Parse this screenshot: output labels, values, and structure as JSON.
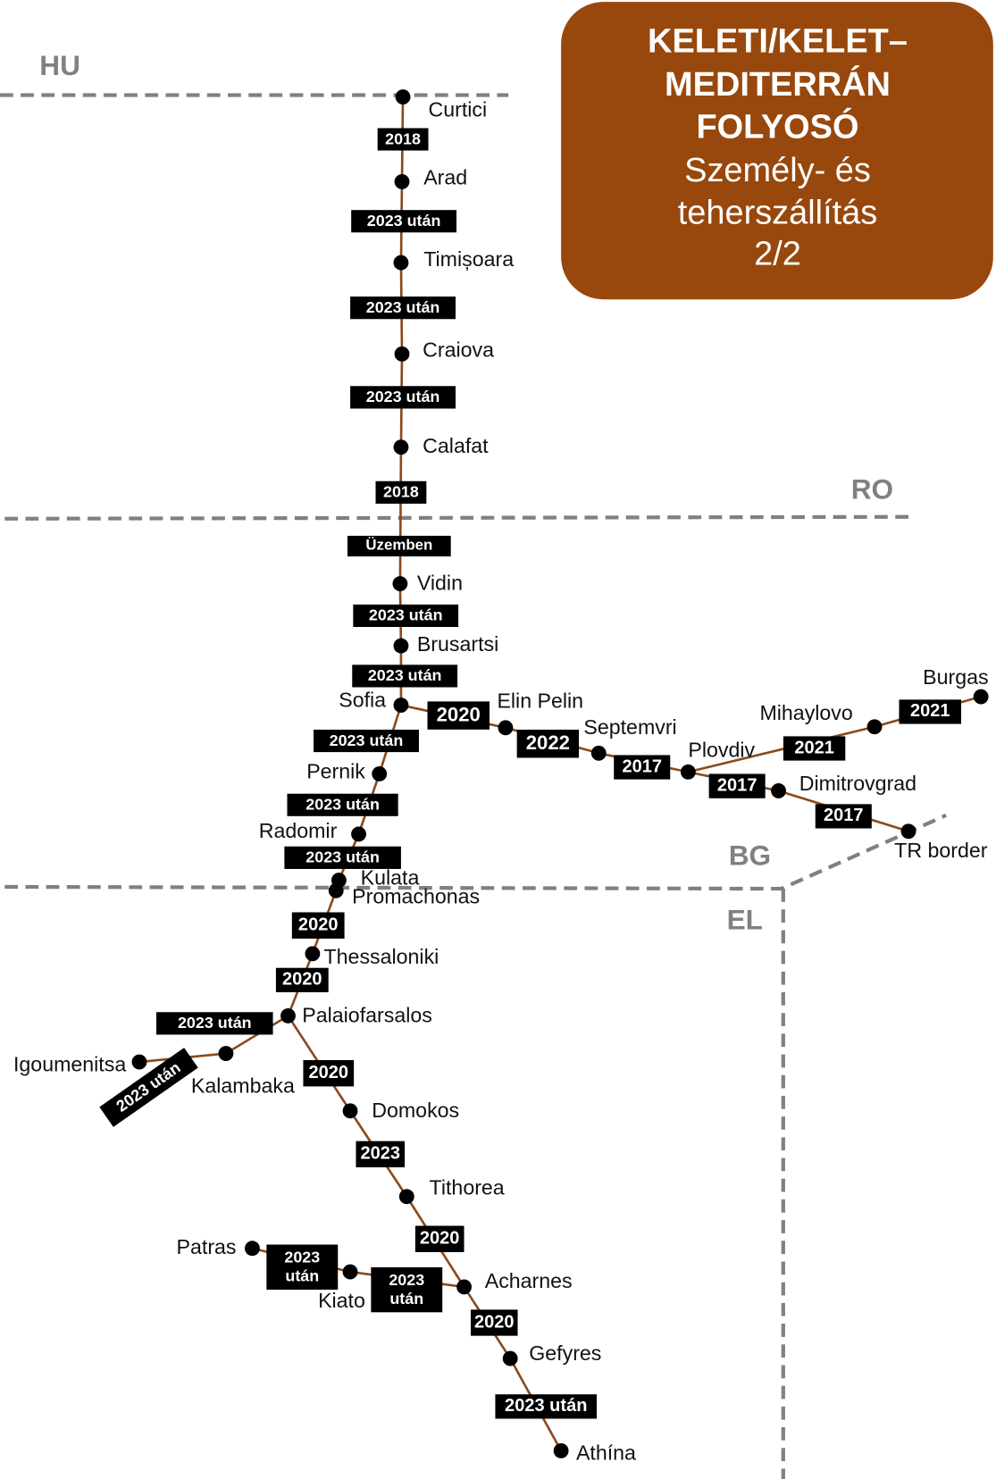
{
  "title": {
    "lines": [
      "KELETI/KELET–",
      "MEDITERRÁN",
      "FOLYOSÓ",
      "Személy- és",
      "teherszállítás",
      "2/2"
    ]
  },
  "countries": [
    "HU",
    "RO",
    "BG",
    "EL"
  ],
  "stations": [
    "Curtici",
    "Arad",
    "Timișoara",
    "Craiova",
    "Calafat",
    "Vidin",
    "Brusartsi",
    "Sofia",
    "Elin Pelin",
    "Septemvri",
    "Plovdiv",
    "Mihaylovo",
    "Burgas",
    "Dimitrovgrad",
    "TR border",
    "Pernik",
    "Radomir",
    "Kulata",
    "Promachonas",
    "Thessaloniki",
    "Palaiofarsalos",
    "Kalambaka",
    "Igoumenitsa",
    "Domokos",
    "Tithorea",
    "Acharnes",
    "Kiato",
    "Patras",
    "Gefyres",
    "Athína"
  ],
  "sections": [
    "2018",
    "2023 után",
    "2023 után",
    "2023 után",
    "2018",
    "Üzemben",
    "2023 után",
    "2023 után",
    "2020",
    "2022",
    "2017",
    "2021",
    "2021",
    "2017",
    "2017",
    "2023 után",
    "2023 után",
    "2023 után",
    "2020",
    "2020",
    "2023 után",
    "2023 után",
    "2020",
    "2023",
    "2020",
    "2023 után",
    "2023 után",
    "2020",
    "2023 után"
  ]
}
